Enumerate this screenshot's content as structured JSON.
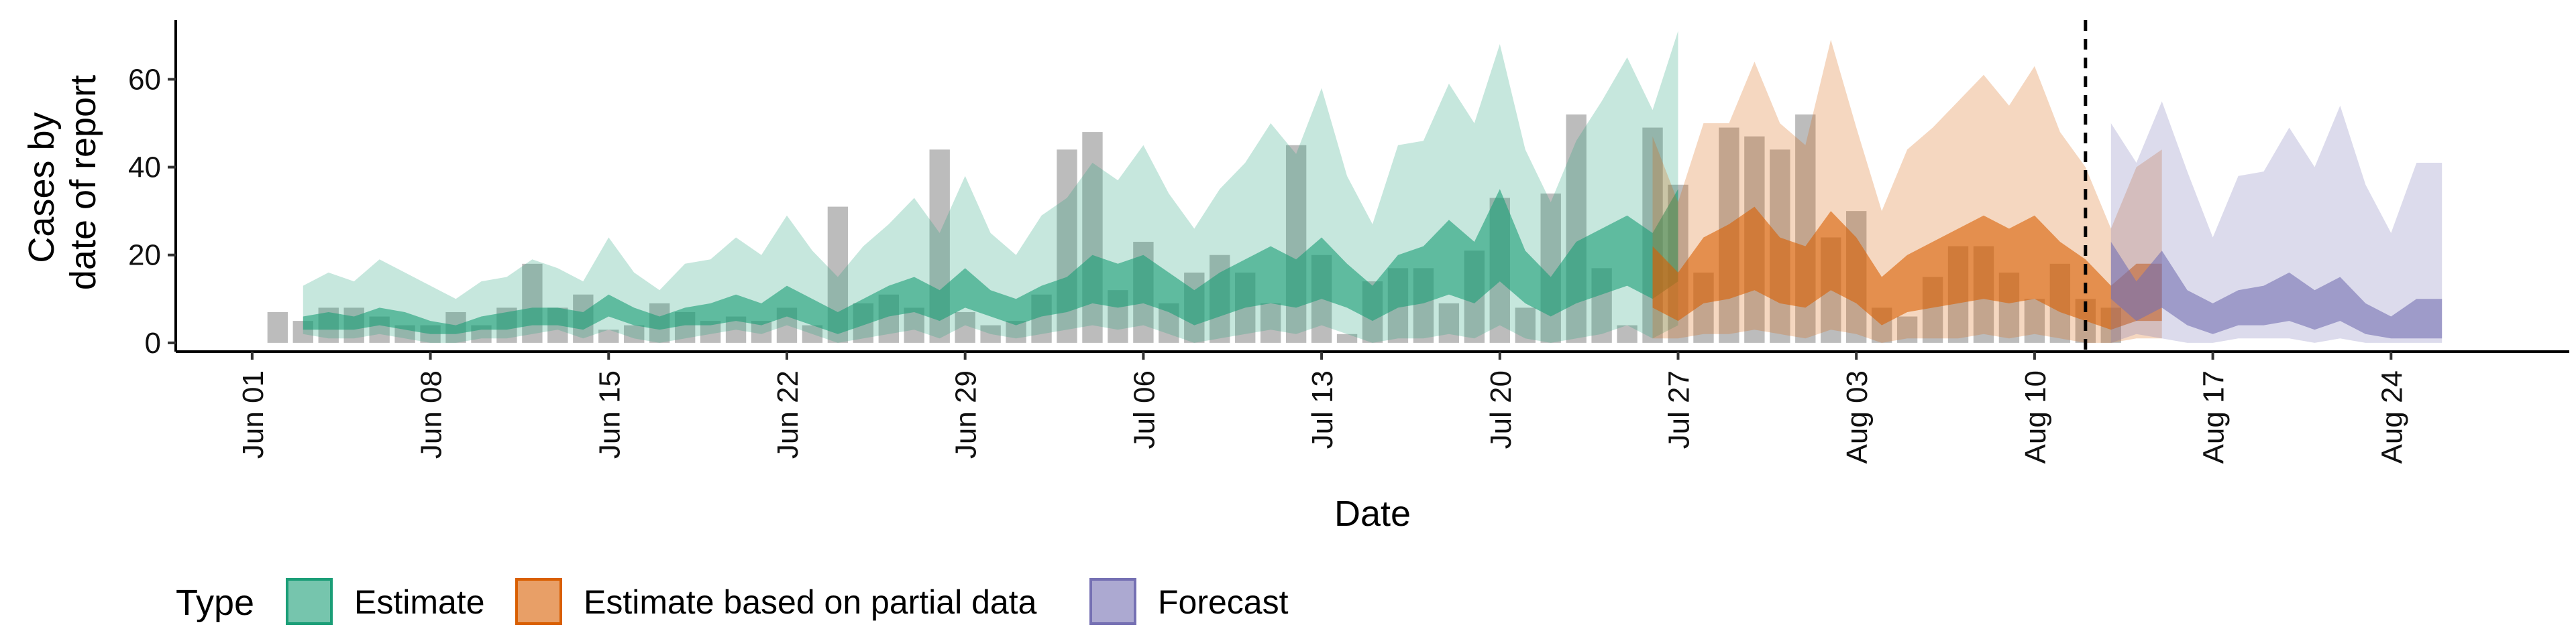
{
  "chart_data": {
    "type": "area",
    "title": "",
    "xlabel": "Date",
    "ylabel_lines": [
      "Cases by",
      "date of report"
    ],
    "x_start": "2020-06-01",
    "x_range": [
      "2020-05-29",
      "2020-08-31"
    ],
    "ylim": [
      -2,
      75
    ],
    "x_ticks": [
      "Jun 01",
      "Jun 08",
      "Jun 15",
      "Jun 22",
      "Jun 29",
      "Jul 06",
      "Jul 13",
      "Jul 20",
      "Jul 27",
      "Aug 03",
      "Aug 10",
      "Aug 17",
      "Aug 24"
    ],
    "y_ticks": [
      0,
      20,
      40,
      60
    ],
    "forecast_cutoff": "2020-08-12",
    "grid": false,
    "legend": {
      "title": "Type",
      "position": "bottom",
      "items": [
        {
          "label": "Estimate",
          "color": "#1b9e77"
        },
        {
          "label": "Estimate based on partial data",
          "color": "#d95f02"
        },
        {
          "label": "Forecast",
          "color": "#7570b3"
        }
      ]
    },
    "bars": {
      "color": "#a6a6a6",
      "start": "2020-06-02",
      "values": [
        7,
        5,
        8,
        8,
        6,
        4,
        4,
        7,
        4,
        8,
        18,
        8,
        11,
        3,
        4,
        9,
        7,
        5,
        6,
        5,
        8,
        4,
        31,
        9,
        11,
        8,
        44,
        7,
        4,
        5,
        11,
        44,
        48,
        12,
        23,
        9,
        16,
        20,
        16,
        9,
        45,
        20,
        2,
        14,
        17,
        17,
        9,
        21,
        33,
        8,
        34,
        52,
        17,
        4,
        49,
        36,
        16,
        49,
        47,
        44,
        52,
        24,
        30,
        8,
        6,
        15,
        22,
        22,
        16,
        10,
        18,
        10,
        8
      ]
    },
    "series": [
      {
        "name": "Estimate",
        "color": "#1b9e77",
        "start": "2020-06-03",
        "outer_upper": [
          13,
          16,
          14,
          19,
          16,
          13,
          10,
          14,
          15,
          19,
          17,
          14,
          24,
          16,
          12,
          18,
          19,
          24,
          20,
          29,
          21,
          15,
          22,
          27,
          33,
          25,
          38,
          25,
          20,
          29,
          33,
          41,
          37,
          45,
          34,
          26,
          35,
          41,
          50,
          43,
          58,
          38,
          27,
          45,
          46,
          59,
          50,
          68,
          44,
          32,
          46,
          55,
          65,
          53,
          71
        ],
        "outer_lower": [
          2,
          1,
          1,
          2,
          1,
          0,
          0,
          1,
          1,
          2,
          3,
          1,
          3,
          1,
          0,
          1,
          2,
          3,
          2,
          4,
          2,
          0,
          1,
          2,
          3,
          1,
          4,
          2,
          1,
          2,
          3,
          4,
          3,
          4,
          2,
          0,
          1,
          2,
          3,
          2,
          4,
          2,
          0,
          1,
          1,
          2,
          1,
          4,
          1,
          0,
          1,
          2,
          4,
          1,
          4
        ],
        "inner_upper": [
          6,
          7,
          6,
          8,
          7,
          5,
          4,
          6,
          7,
          8,
          8,
          7,
          11,
          8,
          6,
          8,
          9,
          11,
          9,
          13,
          10,
          7,
          10,
          13,
          15,
          12,
          17,
          12,
          10,
          13,
          15,
          20,
          18,
          20,
          16,
          12,
          16,
          19,
          22,
          19,
          24,
          18,
          13,
          20,
          22,
          28,
          23,
          35,
          21,
          15,
          23,
          26,
          29,
          25,
          35
        ],
        "inner_lower": [
          3,
          3,
          3,
          4,
          3,
          2,
          2,
          3,
          3,
          4,
          4,
          3,
          6,
          4,
          3,
          4,
          4,
          5,
          4,
          6,
          4,
          2,
          4,
          6,
          7,
          5,
          8,
          6,
          4,
          6,
          7,
          9,
          8,
          9,
          7,
          4,
          6,
          8,
          9,
          8,
          10,
          8,
          5,
          8,
          9,
          11,
          9,
          14,
          9,
          6,
          9,
          11,
          13,
          10,
          14
        ]
      },
      {
        "name": "Estimate based on partial data",
        "color": "#d95f02",
        "start": "2020-07-26",
        "outer_upper": [
          47,
          32,
          50,
          50,
          64,
          50,
          45,
          69,
          49,
          30,
          44,
          49,
          55,
          61,
          54,
          63,
          48,
          40,
          26,
          40,
          44
        ],
        "outer_lower": [
          1,
          1,
          2,
          2,
          3,
          2,
          1,
          3,
          2,
          0,
          1,
          1,
          1,
          2,
          1,
          2,
          1,
          0,
          0,
          1,
          1
        ],
        "inner_upper": [
          22,
          16,
          24,
          27,
          31,
          24,
          22,
          30,
          24,
          15,
          20,
          23,
          26,
          29,
          26,
          29,
          23,
          19,
          13,
          18,
          18
        ],
        "inner_lower": [
          8,
          5,
          9,
          10,
          12,
          9,
          8,
          12,
          9,
          4,
          7,
          8,
          9,
          10,
          9,
          10,
          7,
          5,
          3,
          5,
          5
        ]
      },
      {
        "name": "Forecast",
        "color": "#7570b3",
        "start": "2020-08-13",
        "outer_upper": [
          50,
          41,
          55,
          39,
          24,
          38,
          39,
          49,
          40,
          54,
          36,
          25,
          41,
          41
        ],
        "outer_lower": [
          0,
          2,
          1,
          0,
          0,
          1,
          1,
          1,
          0,
          1,
          0,
          0,
          0,
          0
        ],
        "inner_upper": [
          23,
          14,
          21,
          12,
          9,
          12,
          13,
          16,
          12,
          15,
          9,
          6,
          10,
          10
        ],
        "inner_lower": [
          10,
          5,
          8,
          4,
          2,
          4,
          4,
          5,
          3,
          5,
          2,
          1,
          1,
          1
        ]
      }
    ]
  }
}
